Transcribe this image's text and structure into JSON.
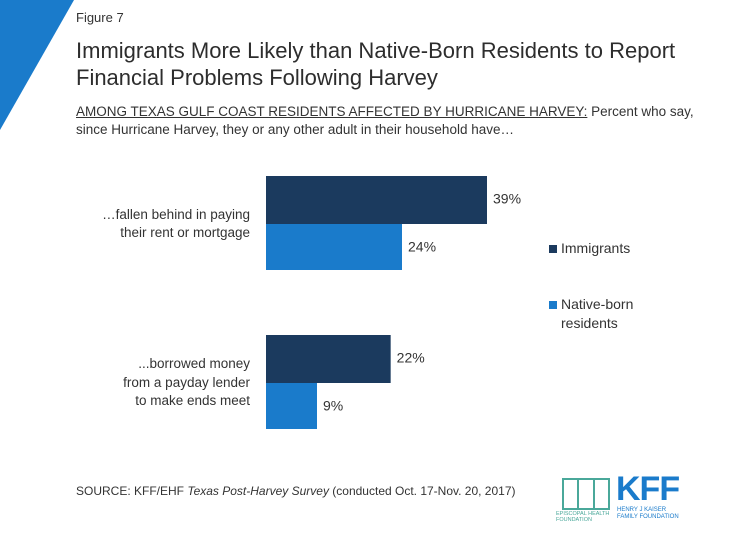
{
  "chart_data": {
    "type": "hbar",
    "figure_label": "Figure 7",
    "title": "Immigrants More Likely than Native-Born Residents to Report Financial Problems Following Harvey",
    "subtitle_lead": "AMONG TEXAS GULF COAST RESIDENTS AFFECTED BY HURRICANE HARVEY:",
    "subtitle": "Percent who say, since Hurricane Harvey, they or any other adult in their household have…",
    "categories": [
      "…fallen behind in paying\ntheir rent or mortgage",
      "...borrowed money\nfrom a payday lender\nto make ends meet"
    ],
    "series": [
      {
        "name": "Immigrants",
        "color": "#1b3a5e",
        "values": [
          39,
          22
        ],
        "value_labels": [
          "39%",
          "22%"
        ]
      },
      {
        "name": "Native-born\nresidents",
        "color": "#1a7bcb",
        "values": [
          24,
          9
        ],
        "value_labels": [
          "24%",
          "9%"
        ]
      }
    ],
    "legend": "right",
    "source_prefix": "SOURCE: KFF/EHF ",
    "source_title": "Texas Post-Harvey Survey",
    "source_suffix": " (conducted Oct. 17-Nov. 20, 2017)",
    "logo_left": "EPISCOPAL HEALTH\nFOUNDATION",
    "logo_right": "KFF",
    "logo_right_sub": "HENRY J KAISER\nFAMILY FOUNDATION"
  }
}
